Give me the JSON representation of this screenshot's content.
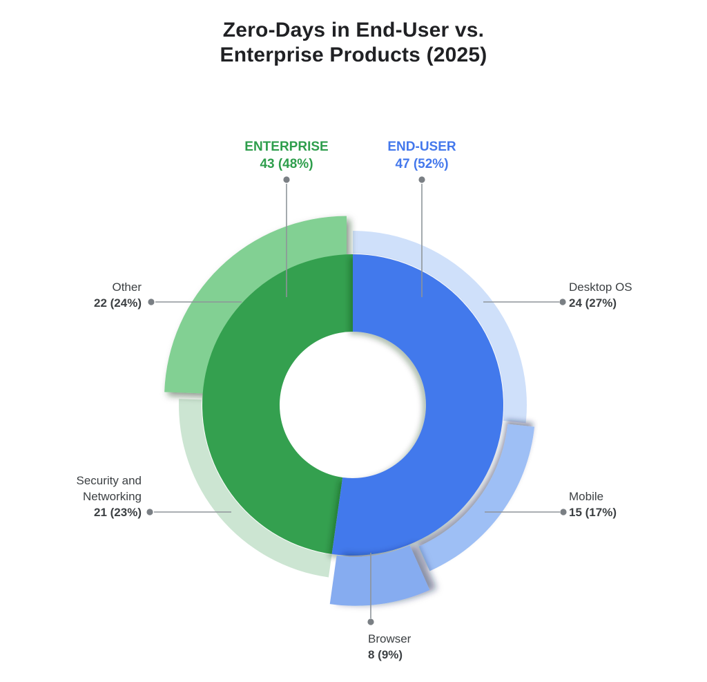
{
  "title": {
    "line1": "Zero-Days in End-User vs.",
    "line2": "Enterprise Products (2025)",
    "color": "#202124"
  },
  "chart_data": {
    "type": "pie",
    "subtype": "nested-donut",
    "title": "Zero-Days in End-User vs. Enterprise Products (2025)",
    "total": 90,
    "inner_ring": [
      {
        "name": "END-USER",
        "value": 47,
        "percent": 52,
        "value_label": "47 (52%)",
        "color": "#4379EC",
        "label_color": "#4478EC"
      },
      {
        "name": "ENTERPRISE",
        "value": 43,
        "percent": 48,
        "value_label": "43 (48%)",
        "color": "#34A04F",
        "label_color": "#2E9E4C"
      }
    ],
    "outer_ring": [
      {
        "name": "Desktop OS",
        "value": 24,
        "percent": 27,
        "value_label": "24 (27%)",
        "color": "#CFE0FA",
        "group": "END-USER"
      },
      {
        "name": "Mobile",
        "value": 15,
        "percent": 17,
        "value_label": "15 (17%)",
        "color": "#9EBFF5",
        "group": "END-USER"
      },
      {
        "name": "Browser",
        "value": 8,
        "percent": 9,
        "value_label": "8 (9%)",
        "color": "#86ACF0",
        "group": "END-USER"
      },
      {
        "name": "Security and Networking",
        "value": 21,
        "percent": 23,
        "value_label": "21 (23%)",
        "color": "#CCE5D2",
        "group": "ENTERPRISE"
      },
      {
        "name": "Other",
        "value": 22,
        "percent": 24,
        "value_label": "22 (24%)",
        "color": "#82D093",
        "group": "ENTERPRISE"
      }
    ],
    "layout": {
      "legend_position": "leader-labels",
      "start_angle_deg": 0,
      "direction": "clockwise",
      "grid": false,
      "leader_line_color": "#8E9499",
      "leader_dot_color": "#7A7F84",
      "label_text_color": "#3C4043",
      "background": "#FFFFFF"
    }
  }
}
